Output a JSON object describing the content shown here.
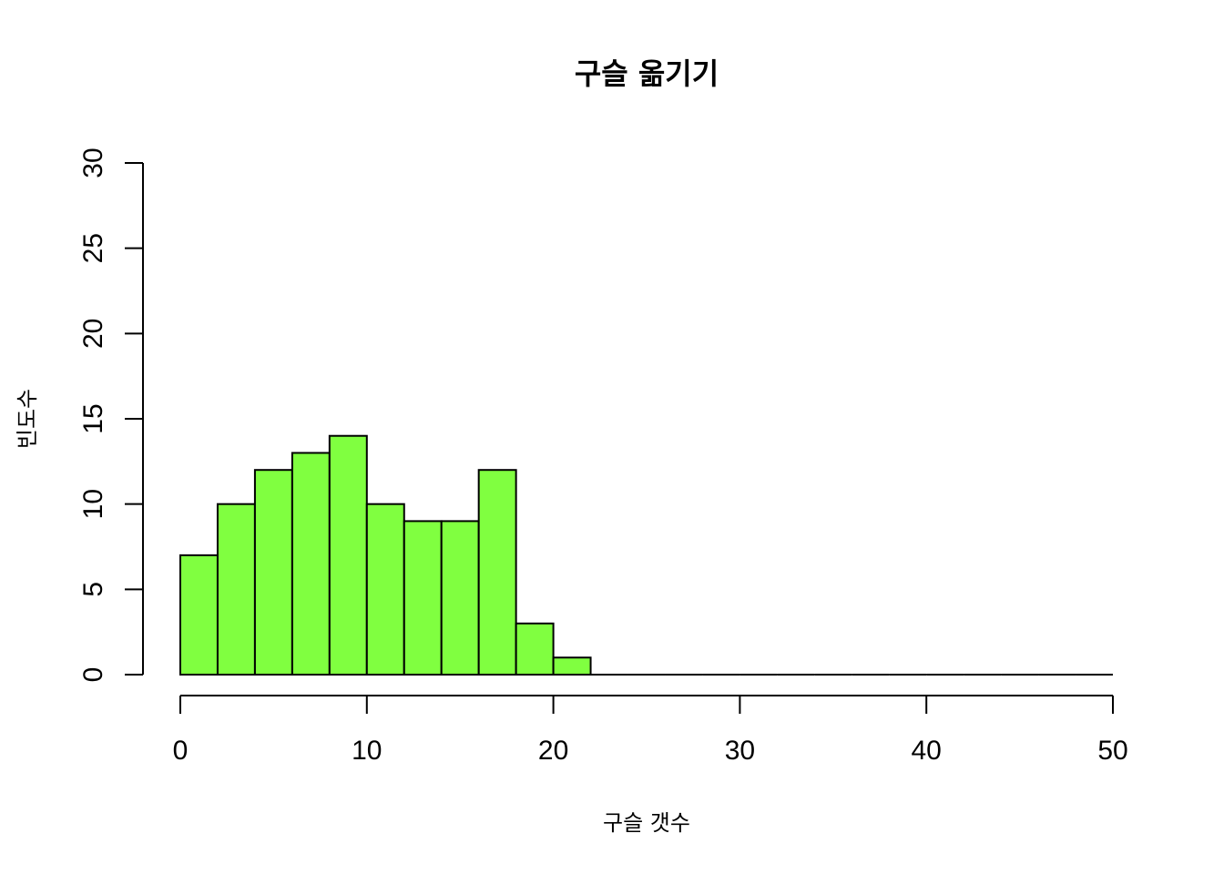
{
  "chart_data": {
    "type": "histogram",
    "title": "구슬 옮기기",
    "xlabel": "구슬 갯수",
    "ylabel": "빈도수",
    "bar_color": "#80FF40",
    "border_color": "#000000",
    "background": "#FFFFFF",
    "bin_width": 2,
    "bins": [
      {
        "start": 0,
        "end": 2,
        "count": 7
      },
      {
        "start": 2,
        "end": 4,
        "count": 10
      },
      {
        "start": 4,
        "end": 6,
        "count": 12
      },
      {
        "start": 6,
        "end": 8,
        "count": 13
      },
      {
        "start": 8,
        "end": 10,
        "count": 14
      },
      {
        "start": 10,
        "end": 12,
        "count": 10
      },
      {
        "start": 12,
        "end": 14,
        "count": 9
      },
      {
        "start": 14,
        "end": 16,
        "count": 9
      },
      {
        "start": 16,
        "end": 18,
        "count": 12
      },
      {
        "start": 18,
        "end": 20,
        "count": 3
      },
      {
        "start": 20,
        "end": 22,
        "count": 1
      },
      {
        "start": 22,
        "end": 24,
        "count": 0
      },
      {
        "start": 24,
        "end": 26,
        "count": 0
      },
      {
        "start": 26,
        "end": 28,
        "count": 0
      },
      {
        "start": 28,
        "end": 30,
        "count": 0
      },
      {
        "start": 30,
        "end": 32,
        "count": 0
      },
      {
        "start": 32,
        "end": 34,
        "count": 0
      },
      {
        "start": 34,
        "end": 36,
        "count": 0
      },
      {
        "start": 36,
        "end": 38,
        "count": 0
      },
      {
        "start": 38,
        "end": 40,
        "count": 0
      },
      {
        "start": 40,
        "end": 42,
        "count": 0
      },
      {
        "start": 42,
        "end": 44,
        "count": 0
      },
      {
        "start": 44,
        "end": 46,
        "count": 0
      },
      {
        "start": 46,
        "end": 48,
        "count": 0
      },
      {
        "start": 48,
        "end": 50,
        "count": 0
      }
    ],
    "xlim": [
      0,
      50
    ],
    "ylim": [
      0,
      30
    ],
    "x_ticks": [
      0,
      10,
      20,
      30,
      40,
      50
    ],
    "y_ticks": [
      0,
      5,
      10,
      15,
      20,
      25,
      30
    ],
    "grid": false,
    "legend": "none"
  }
}
